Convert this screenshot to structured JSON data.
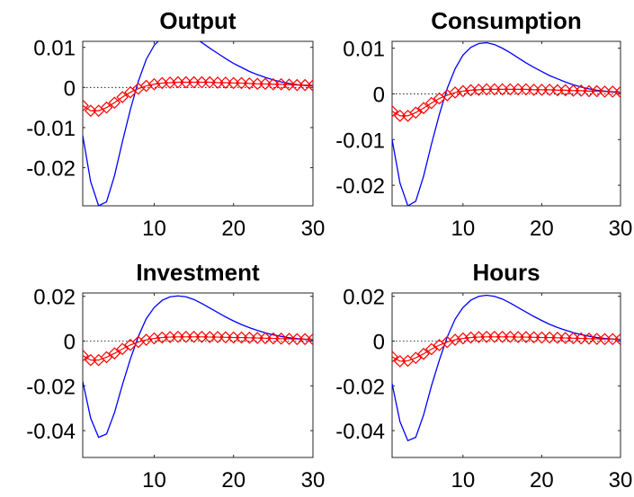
{
  "chart_data": [
    {
      "type": "line",
      "title": "Output",
      "xlim": [
        1,
        30
      ],
      "ylim": [
        -0.0295,
        0.0115
      ],
      "xticks": [
        10,
        20,
        30
      ],
      "xtick_labels": [
        "10",
        "20",
        "30"
      ],
      "yticks": [
        0.01,
        0,
        -0.01,
        -0.02
      ],
      "ytick_labels": [
        "0.01",
        "0",
        "-0.01",
        "-0.02"
      ],
      "zero_line": true,
      "x": [
        1,
        2,
        3,
        4,
        5,
        6,
        7,
        8,
        9,
        10,
        11,
        12,
        13,
        14,
        15,
        16,
        17,
        18,
        19,
        20,
        21,
        22,
        23,
        24,
        25,
        26,
        27,
        28,
        29,
        30
      ],
      "series": [
        {
          "style": "solid",
          "color": "#0000ff",
          "values": [
            -0.012,
            -0.0235,
            -0.0295,
            -0.0285,
            -0.022,
            -0.0135,
            -0.0055,
            0.0015,
            0.007,
            0.0105,
            0.0125,
            0.0135,
            0.0138,
            0.0135,
            0.0125,
            0.0112,
            0.0098,
            0.0085,
            0.0072,
            0.006,
            0.005,
            0.004,
            0.0032,
            0.0025,
            0.0019,
            0.0014,
            0.001,
            0.0007,
            0.0005,
            0.0004
          ]
        },
        {
          "style": "diamond",
          "color": "#ff0000",
          "values": [
            -0.0045,
            -0.0058,
            -0.0058,
            -0.005,
            -0.0038,
            -0.0024,
            -0.0012,
            -0.0003,
            0.0004,
            0.0008,
            0.0011,
            0.0012,
            0.0013,
            0.0013,
            0.0013,
            0.0013,
            0.0013,
            0.0012,
            0.0012,
            0.0011,
            0.0011,
            0.001,
            0.0009,
            0.0009,
            0.0008,
            0.0008,
            0.0007,
            0.0006,
            0.0006,
            0.0005
          ]
        }
      ]
    },
    {
      "type": "line",
      "title": "Consumption",
      "xlim": [
        1,
        30
      ],
      "ylim": [
        -0.0245,
        0.0115
      ],
      "xticks": [
        10,
        20,
        30
      ],
      "xtick_labels": [
        "10",
        "20",
        "30"
      ],
      "yticks": [
        0.01,
        0,
        -0.01,
        -0.02
      ],
      "ytick_labels": [
        "0.01",
        "0",
        "-0.01",
        "-0.02"
      ],
      "zero_line": true,
      "x": [
        1,
        2,
        3,
        4,
        5,
        6,
        7,
        8,
        9,
        10,
        11,
        12,
        13,
        14,
        15,
        16,
        17,
        18,
        19,
        20,
        21,
        22,
        23,
        24,
        25,
        26,
        27,
        28,
        29,
        30
      ],
      "series": [
        {
          "style": "solid",
          "color": "#0000ff",
          "values": [
            -0.01,
            -0.0195,
            -0.0245,
            -0.0235,
            -0.018,
            -0.011,
            -0.0045,
            0.0012,
            0.0055,
            0.0085,
            0.0102,
            0.011,
            0.0112,
            0.0108,
            0.01,
            0.009,
            0.0079,
            0.0068,
            0.0058,
            0.0049,
            0.004,
            0.0033,
            0.0026,
            0.002,
            0.0015,
            0.0011,
            0.0008,
            0.0006,
            0.0004,
            0.0003
          ]
        },
        {
          "style": "diamond",
          "color": "#ff0000",
          "values": [
            -0.0038,
            -0.0048,
            -0.0048,
            -0.0041,
            -0.0031,
            -0.002,
            -0.001,
            -0.0003,
            0.0003,
            0.0006,
            0.0008,
            0.0009,
            0.001,
            0.001,
            0.001,
            0.001,
            0.001,
            0.001,
            0.0009,
            0.0009,
            0.0009,
            0.0008,
            0.0008,
            0.0007,
            0.0007,
            0.0006,
            0.0006,
            0.0005,
            0.0005,
            0.0004
          ]
        }
      ]
    },
    {
      "type": "line",
      "title": "Investment",
      "xlim": [
        1,
        30
      ],
      "ylim": [
        -0.052,
        0.0215
      ],
      "xticks": [
        10,
        20,
        30
      ],
      "xtick_labels": [
        "10",
        "20",
        "30"
      ],
      "yticks": [
        0.02,
        0,
        -0.02,
        -0.04
      ],
      "ytick_labels": [
        "0.02",
        "0",
        "-0.02",
        "-0.04"
      ],
      "zero_line": true,
      "x": [
        1,
        2,
        3,
        4,
        5,
        6,
        7,
        8,
        9,
        10,
        11,
        12,
        13,
        14,
        15,
        16,
        17,
        18,
        19,
        20,
        21,
        22,
        23,
        24,
        25,
        26,
        27,
        28,
        29,
        30
      ],
      "series": [
        {
          "style": "solid",
          "color": "#0000ff",
          "values": [
            -0.018,
            -0.0345,
            -0.043,
            -0.0415,
            -0.032,
            -0.0195,
            -0.008,
            0.002,
            0.01,
            0.015,
            0.0182,
            0.0198,
            0.0202,
            0.0198,
            0.0186,
            0.0168,
            0.0148,
            0.0128,
            0.0108,
            0.009,
            0.0074,
            0.006,
            0.0048,
            0.0037,
            0.0028,
            0.0021,
            0.0015,
            0.0011,
            0.0008,
            0.0006
          ]
        },
        {
          "style": "diamond",
          "color": "#ff0000",
          "values": [
            -0.0065,
            -0.0085,
            -0.0085,
            -0.0072,
            -0.0055,
            -0.0035,
            -0.0017,
            -0.0004,
            0.0006,
            0.0012,
            0.0016,
            0.0018,
            0.0019,
            0.0019,
            0.0019,
            0.0019,
            0.0018,
            0.0018,
            0.0017,
            0.0016,
            0.0016,
            0.0015,
            0.0014,
            0.0013,
            0.0012,
            0.0011,
            0.001,
            0.0009,
            0.0009,
            0.0008
          ]
        }
      ]
    },
    {
      "type": "line",
      "title": "Hours",
      "xlim": [
        1,
        30
      ],
      "ylim": [
        -0.052,
        0.0215
      ],
      "xticks": [
        10,
        20,
        30
      ],
      "xtick_labels": [
        "10",
        "20",
        "30"
      ],
      "yticks": [
        0.02,
        0,
        -0.02,
        -0.04
      ],
      "ytick_labels": [
        "0.02",
        "0",
        "-0.02",
        "-0.04"
      ],
      "zero_line": true,
      "x": [
        1,
        2,
        3,
        4,
        5,
        6,
        7,
        8,
        9,
        10,
        11,
        12,
        13,
        14,
        15,
        16,
        17,
        18,
        19,
        20,
        21,
        22,
        23,
        24,
        25,
        26,
        27,
        28,
        29,
        30
      ],
      "series": [
        {
          "style": "solid",
          "color": "#0000ff",
          "values": [
            -0.019,
            -0.036,
            -0.0445,
            -0.043,
            -0.033,
            -0.02,
            -0.0085,
            0.0018,
            0.0098,
            0.015,
            0.0183,
            0.02,
            0.0205,
            0.02,
            0.0188,
            0.017,
            0.015,
            0.013,
            0.011,
            0.0092,
            0.0075,
            0.0061,
            0.0049,
            0.0038,
            0.0029,
            0.0022,
            0.0016,
            0.0012,
            0.0009,
            0.0006
          ]
        },
        {
          "style": "diamond",
          "color": "#ff0000",
          "values": [
            -0.007,
            -0.009,
            -0.0088,
            -0.0075,
            -0.0057,
            -0.0036,
            -0.0018,
            -0.0004,
            0.0006,
            0.0012,
            0.0016,
            0.0018,
            0.0019,
            0.0019,
            0.0019,
            0.0019,
            0.0018,
            0.0018,
            0.0017,
            0.0016,
            0.0016,
            0.0015,
            0.0014,
            0.0013,
            0.0012,
            0.0011,
            0.001,
            0.0009,
            0.0009,
            0.0008
          ]
        }
      ]
    }
  ]
}
